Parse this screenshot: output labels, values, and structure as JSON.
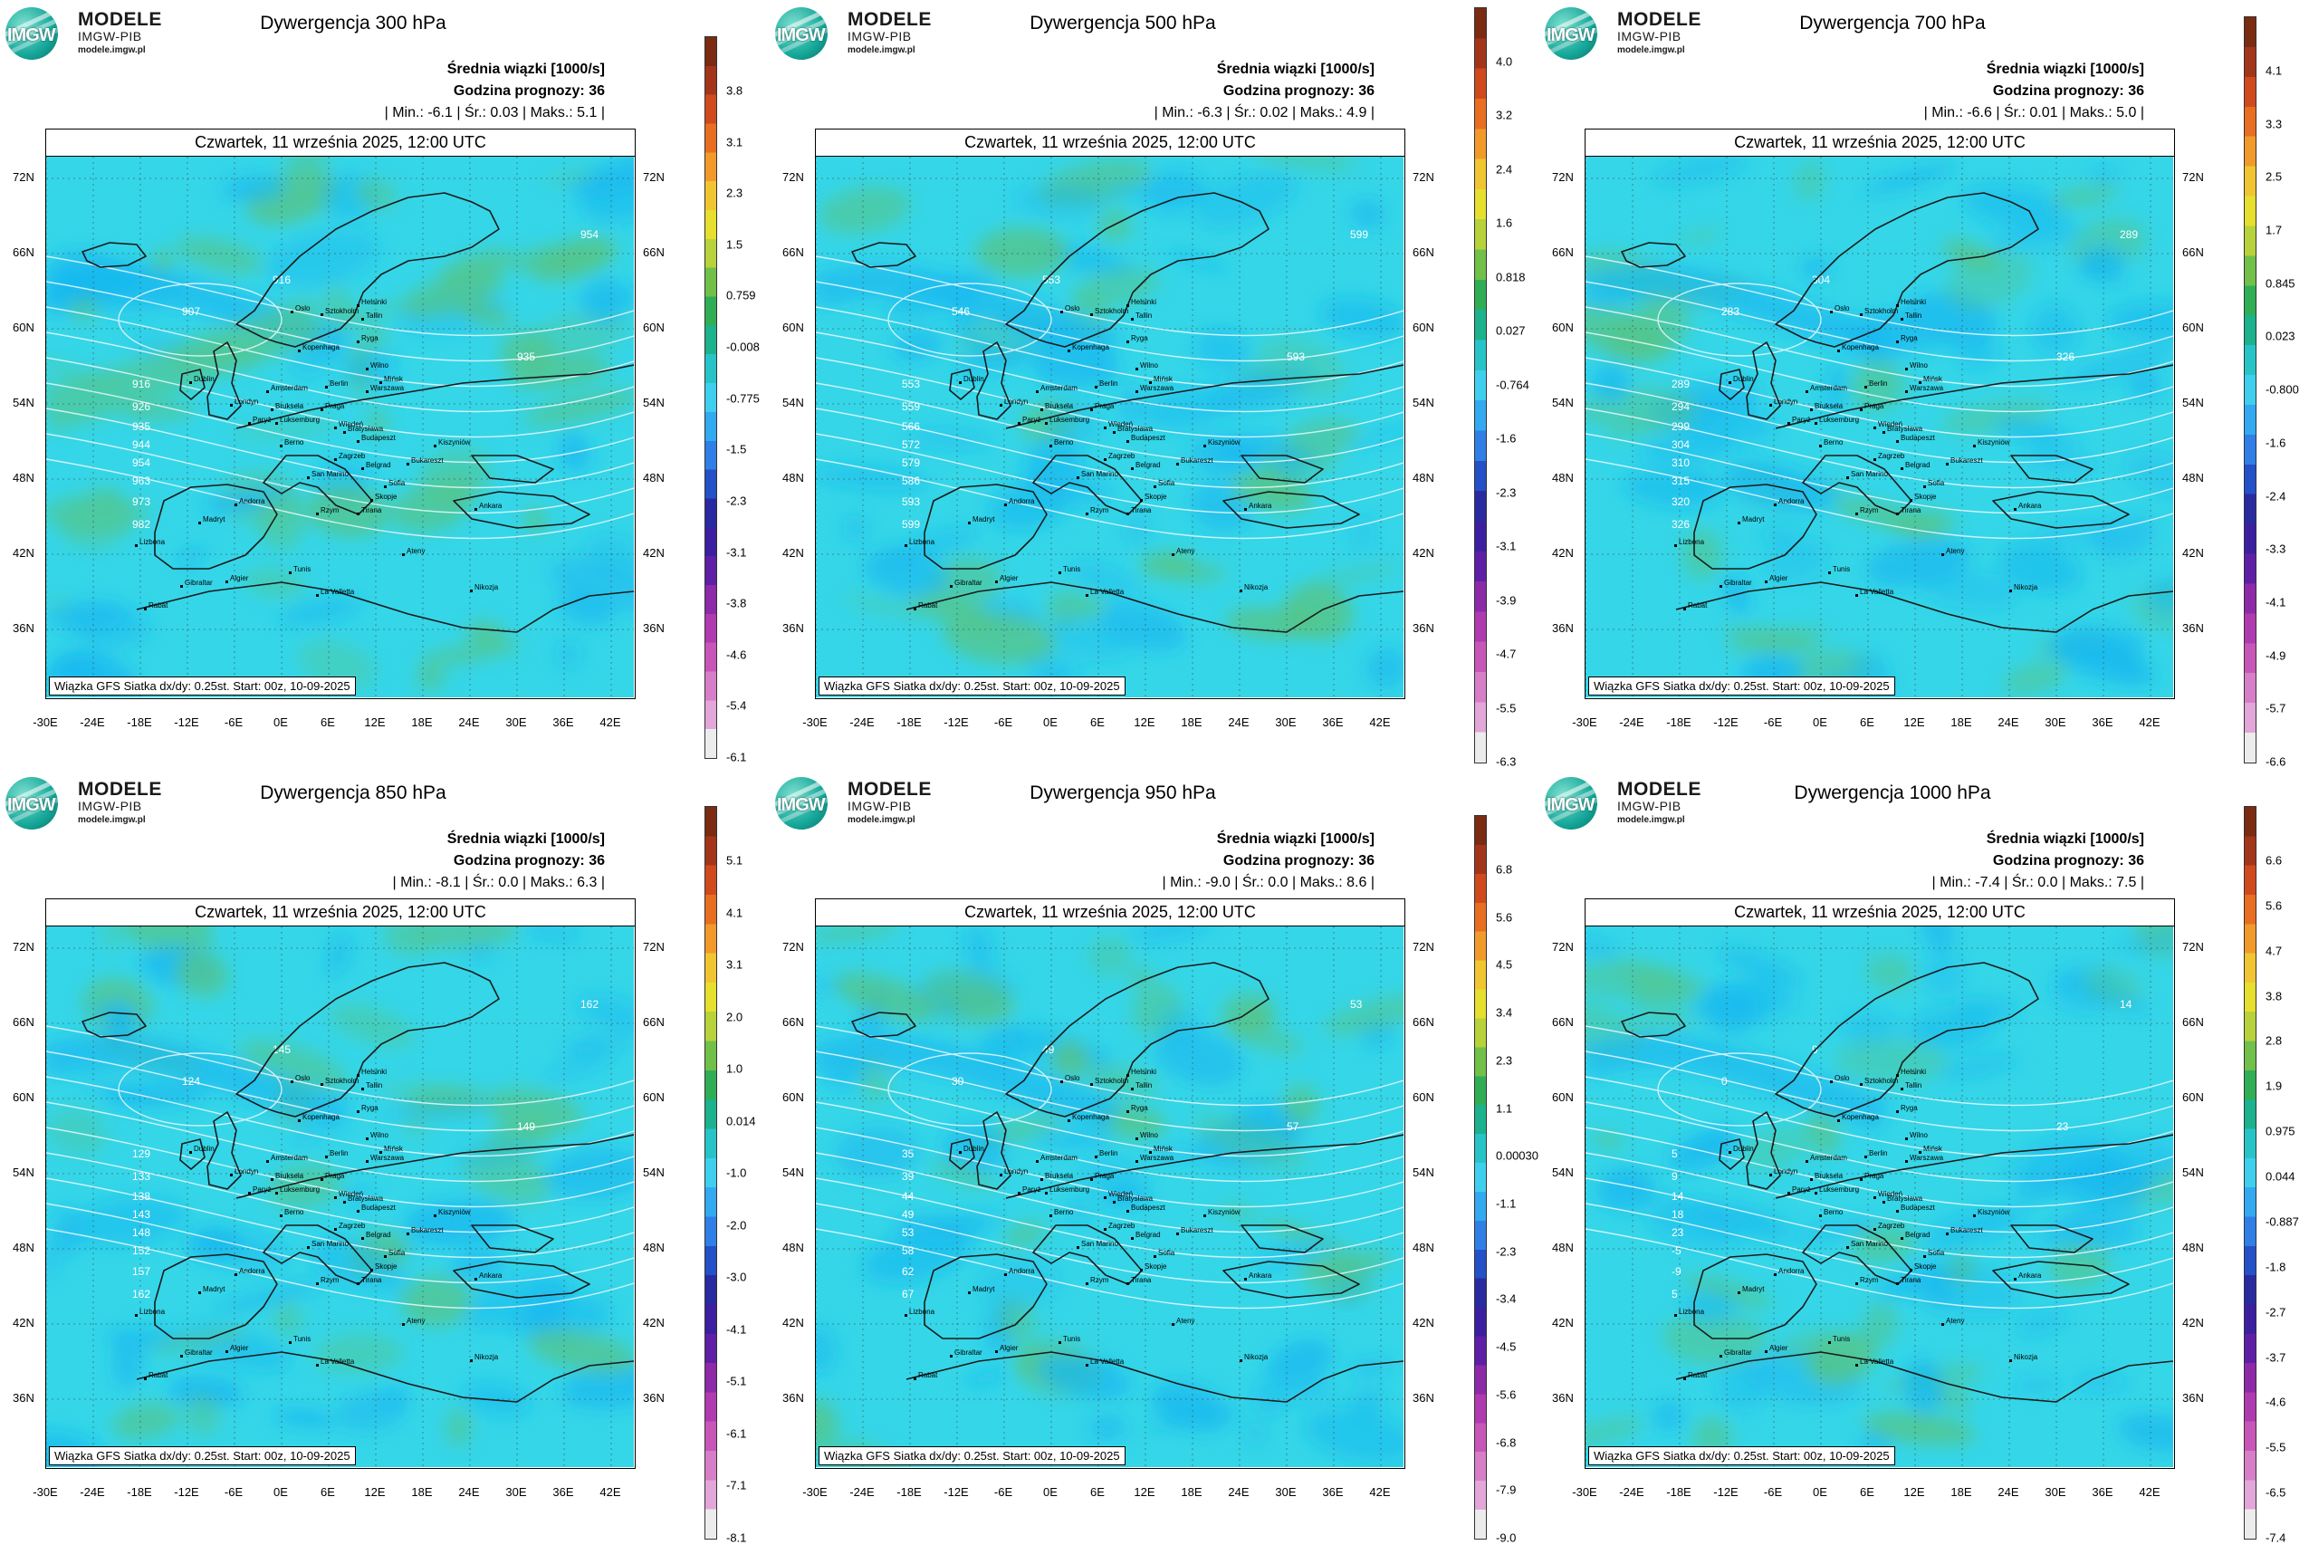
{
  "common": {
    "brand_line1": "MODELE",
    "brand_line2": "IMGW-PIB",
    "brand_line3": "modele.imgw.pl",
    "logo_text": "IMGW",
    "meta_line1": "Średnia wiązki [1000/s]",
    "meta_line2": "Godzina prognozy: 36",
    "date_label": "Czwartek, 11 września 2025, 12:00 UTC",
    "footer": "Wiązka GFS Siatka dx/dy: 0.25st. Start: 00z, 10-09-2025",
    "lat_labels": [
      "72N",
      "66N",
      "60N",
      "54N",
      "48N",
      "42N",
      "36N"
    ],
    "lon_labels": [
      "-30E",
      "-24E",
      "-18E",
      "-12E",
      "-6E",
      "0E",
      "6E",
      "12E",
      "18E",
      "24E",
      "30E",
      "36E",
      "42E"
    ],
    "city_labels": [
      "Oslo",
      "Sztokholm",
      "Helsinki",
      "Tallin",
      "Ryga",
      "Kopenhaga",
      "Wilno",
      "Mińsk",
      "Berlin",
      "Warszawa",
      "Amsterdam",
      "Bruksela",
      "Londyn",
      "Dublin",
      "Paryż",
      "Luksemburg",
      "Praga",
      "Wiedeń",
      "Bratysława",
      "Budapeszt",
      "Berno",
      "Zagrzeb",
      "Kiszyniów",
      "Belgrad",
      "Bukareszt",
      "San Marino",
      "Sofia",
      "Skopje",
      "Tirana",
      "Rzym",
      "Ateny",
      "Ankara",
      "Madryt",
      "Andorra",
      "Lizbona",
      "Gibraltar",
      "Algier",
      "Tunis",
      "La Valletta",
      "Rabat",
      "Nikozja"
    ]
  },
  "colors": {
    "map_base": "#35d6e8",
    "map_cyan_dark": "#19b9ef",
    "map_green": "#56c486",
    "coast": "#1a1a1a",
    "isoline": "#e9f7fb",
    "grid": "#444444"
  },
  "panels": [
    {
      "title": "Dywergencja 300 hPa",
      "stats": "| Min.:  -6.1 | Śr.:  0.03 | Maks.:  5.1 |",
      "colorbar_labels": [
        "3.8",
        "3.1",
        "2.3",
        "1.5",
        "0.759",
        "-0.008",
        "-0.775",
        "-1.5",
        "-2.3",
        "-3.1",
        "-3.8",
        "-4.6",
        "-5.4",
        "-6.1"
      ],
      "isolines": [
        "907",
        "916",
        "926",
        "935",
        "944",
        "954",
        "963",
        "973",
        "982",
        "916",
        "935",
        "954"
      ]
    },
    {
      "title": "Dywergencja 500 hPa",
      "stats": "| Min.:  -6.3 | Śr.:  0.02 | Maks.:  4.9 |",
      "colorbar_labels": [
        "4.0",
        "3.2",
        "2.4",
        "1.6",
        "0.818",
        "0.027",
        "-0.764",
        "-1.6",
        "-2.3",
        "-3.1",
        "-3.9",
        "-4.7",
        "-5.5",
        "-6.3"
      ],
      "isolines": [
        "546",
        "553",
        "559",
        "566",
        "572",
        "579",
        "586",
        "593",
        "599",
        "553",
        "593",
        "599"
      ]
    },
    {
      "title": "Dywergencja 700 hPa",
      "stats": "| Min.:  -6.6 | Śr.:  0.01 | Maks.:  5.0 |",
      "colorbar_labels": [
        "4.1",
        "3.3",
        "2.5",
        "1.7",
        "0.845",
        "0.023",
        "-0.800",
        "-1.6",
        "-2.4",
        "-3.3",
        "-4.1",
        "-4.9",
        "-5.7",
        "-6.6"
      ],
      "isolines": [
        "283",
        "289",
        "294",
        "299",
        "304",
        "310",
        "315",
        "320",
        "326",
        "304",
        "326",
        "289"
      ]
    },
    {
      "title": "Dywergencja 850 hPa",
      "stats": "| Min.:  -8.1 | Śr.:  0.0 | Maks.:  6.3 |",
      "colorbar_labels": [
        "5.1",
        "4.1",
        "3.1",
        "2.0",
        "1.0",
        "0.014",
        "-1.0",
        "-2.0",
        "-3.0",
        "-4.1",
        "-5.1",
        "-6.1",
        "-7.1",
        "-8.1"
      ],
      "isolines": [
        "124",
        "129",
        "133",
        "138",
        "143",
        "148",
        "152",
        "157",
        "162",
        "145",
        "149",
        "162"
      ]
    },
    {
      "title": "Dywergencja 950 hPa",
      "stats": "| Min.:  -9.0 | Śr.:  0.0 | Maks.:  8.6 |",
      "colorbar_labels": [
        "6.8",
        "5.6",
        "4.5",
        "3.4",
        "2.3",
        "1.1",
        "0.00030",
        "-1.1",
        "-2.3",
        "-3.4",
        "-4.5",
        "-5.6",
        "-6.8",
        "-7.9",
        "-9.0"
      ],
      "isolines": [
        "30",
        "35",
        "39",
        "44",
        "49",
        "53",
        "58",
        "62",
        "67",
        "49",
        "57",
        "53"
      ]
    },
    {
      "title": "Dywergencja 1000 hPa",
      "stats": "| Min.:  -7.4 | Śr.:  0.0 | Maks.:  7.5 |",
      "colorbar_labels": [
        "6.6",
        "5.6",
        "4.7",
        "3.8",
        "2.8",
        "1.9",
        "0.975",
        "0.044",
        "-0.887",
        "-1.8",
        "-2.7",
        "-3.7",
        "-4.6",
        "-5.5",
        "-6.5",
        "-7.4"
      ],
      "isolines": [
        "0",
        "5",
        "9",
        "14",
        "18",
        "23",
        "-5",
        "-9",
        "5",
        "9",
        "23",
        "14"
      ]
    }
  ]
}
